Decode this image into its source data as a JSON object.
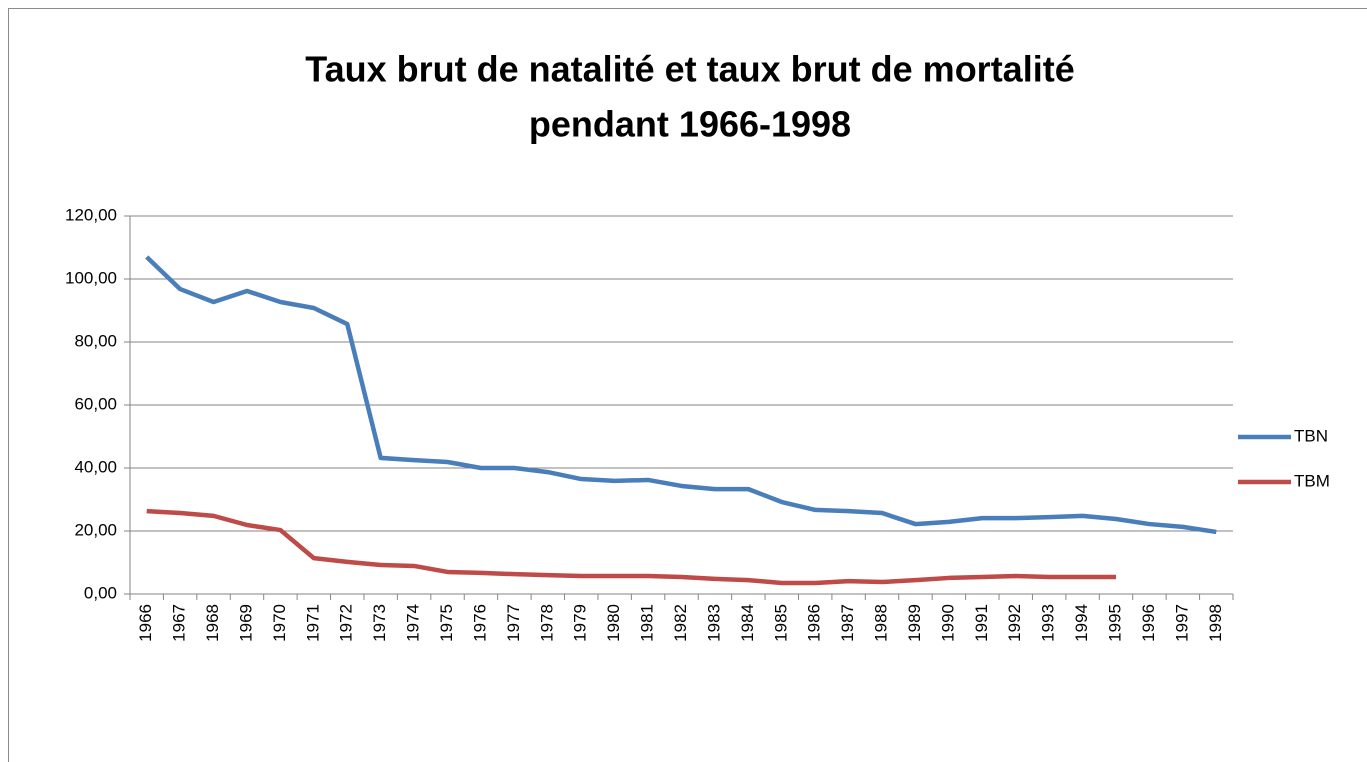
{
  "chart_data": {
    "type": "line",
    "title": [
      "Taux brut de natalité  et taux brut de mortalité",
      "pendant 1966-1998"
    ],
    "categories": [
      "1966",
      "1967",
      "1968",
      "1969",
      "1970",
      "1971",
      "1972",
      "1973",
      "1974",
      "1975",
      "1976",
      "1977",
      "1978",
      "1979",
      "1980",
      "1981",
      "1982",
      "1983",
      "1984",
      "1985",
      "1986",
      "1987",
      "1988",
      "1989",
      "1990",
      "1991",
      "1992",
      "1993",
      "1994",
      "1995",
      "1996",
      "1997",
      "1998"
    ],
    "series": [
      {
        "name": "TBN",
        "color": "#4a7ebb",
        "values": [
          107.0,
          96.8,
          92.7,
          96.2,
          92.7,
          90.8,
          85.7,
          43.2,
          42.5,
          41.9,
          40.0,
          40.0,
          38.7,
          36.5,
          35.9,
          36.2,
          34.3,
          33.3,
          33.3,
          29.2,
          26.7,
          26.3,
          25.7,
          22.2,
          22.9,
          24.1,
          24.1,
          24.4,
          24.8,
          23.8,
          22.2,
          21.3,
          19.7
        ]
      },
      {
        "name": "TBM",
        "color": "#be4b48",
        "values": [
          26.3,
          25.7,
          24.8,
          21.9,
          20.3,
          11.4,
          10.2,
          9.2,
          8.9,
          7.0,
          6.7,
          6.3,
          6.0,
          5.7,
          5.7,
          5.7,
          5.4,
          4.8,
          4.4,
          3.5,
          3.5,
          4.1,
          3.8,
          4.4,
          5.1,
          5.4,
          5.7,
          5.4,
          5.4,
          5.4,
          null,
          null,
          null
        ]
      }
    ],
    "ylim": [
      0,
      120
    ],
    "yticks": [
      {
        "value": 0,
        "label": "0,00"
      },
      {
        "value": 20,
        "label": "20,00"
      },
      {
        "value": 40,
        "label": "40,00"
      },
      {
        "value": 60,
        "label": "60,00"
      },
      {
        "value": 80,
        "label": "80,00"
      },
      {
        "value": 100,
        "label": "100,00"
      },
      {
        "value": 120,
        "label": "120,00"
      }
    ],
    "grid": true,
    "legend": "right"
  }
}
